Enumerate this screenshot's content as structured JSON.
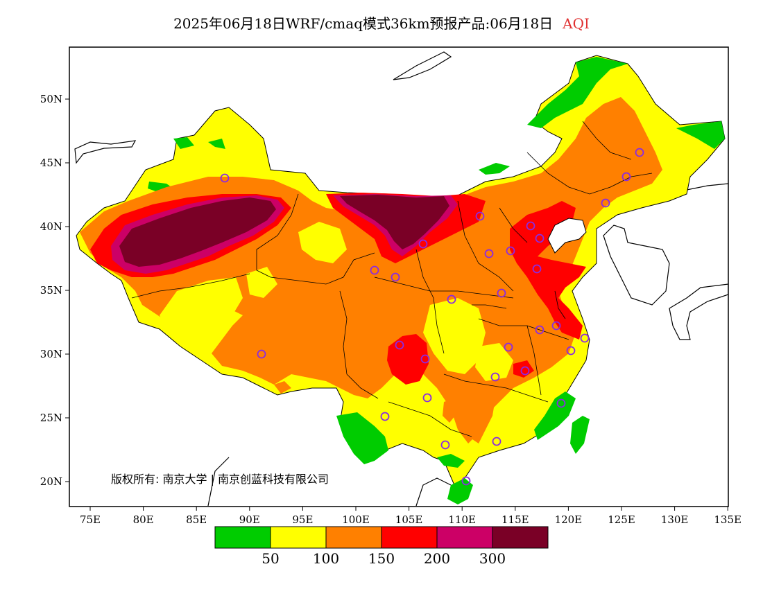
{
  "title": {
    "main": "2025年06月18日WRF/cmaq模式36km预报产品:06月18日",
    "variable": "AQI"
  },
  "map": {
    "lon_range": [
      73,
      135
    ],
    "lat_range": [
      18,
      54
    ],
    "x_ticks": [
      "75E",
      "80E",
      "85E",
      "90E",
      "95E",
      "100E",
      "105E",
      "110E",
      "115E",
      "120E",
      "125E",
      "130E",
      "135E"
    ],
    "y_ticks": [
      "50N",
      "45N",
      "40N",
      "35N",
      "30N",
      "25N",
      "20N"
    ],
    "copyright": "版权所有: 南京大学 | 南京创蓝科技有限公司"
  },
  "legend": {
    "colors": [
      "#00cc00",
      "#ffff00",
      "#ff8000",
      "#ff0000",
      "#cc0066",
      "#7a0026"
    ],
    "labels": [
      "50",
      "100",
      "150",
      "200",
      "300"
    ]
  },
  "city_markers": {
    "color": "#8a2be2",
    "count": 33
  }
}
